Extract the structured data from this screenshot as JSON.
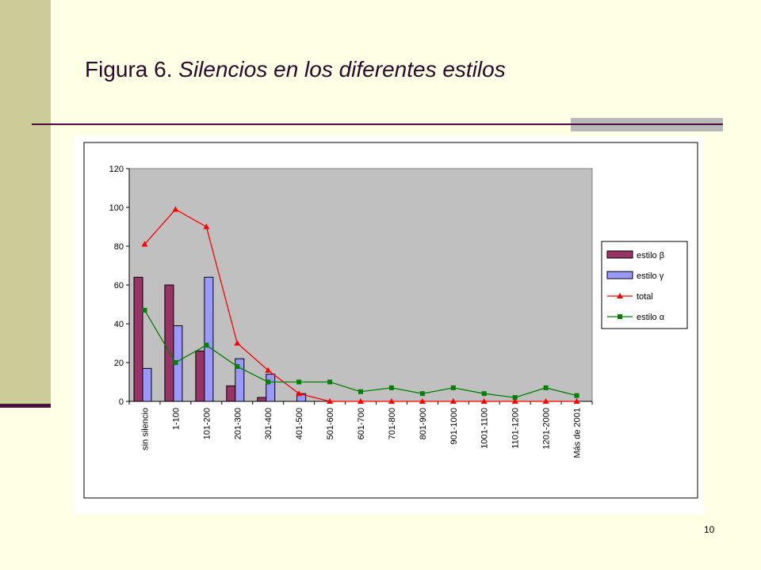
{
  "slide": {
    "title_prefix": "Figura 6. ",
    "title_italic": "Silencios en los diferentes estilos",
    "page_number": "10"
  },
  "colors": {
    "background": "#FFFFE5",
    "left_band": "#CCCC99",
    "accent_line": "#4B0F3C",
    "plot_area": "#C0C0C0",
    "estilo_beta": "#993366",
    "estilo_gamma": "#9999FF",
    "total": "#FF0000",
    "estilo_alpha": "#008000"
  },
  "chart_data": {
    "type": "bar",
    "categories": [
      "sin silencio",
      "1-100",
      "101-200",
      "201-300",
      "301-400",
      "401-500",
      "501-600",
      "601-700",
      "701-800",
      "801-900",
      "901-1000",
      "1001-1100",
      "1101-1200",
      "1201-2000",
      "Más de 2001"
    ],
    "ylim": [
      0,
      120
    ],
    "yticks": [
      "0",
      "20",
      "40",
      "60",
      "80",
      "100",
      "120"
    ],
    "grid": false,
    "legend_position": "right",
    "series": [
      {
        "name": "estilo β",
        "kind": "bar",
        "values": [
          64,
          60,
          26,
          8,
          2,
          0,
          0,
          0,
          0,
          0,
          0,
          0,
          0,
          0,
          0
        ]
      },
      {
        "name": "estilo γ",
        "kind": "bar",
        "values": [
          17,
          39,
          64,
          22,
          14,
          4,
          0,
          0,
          0,
          0,
          0,
          0,
          0,
          0,
          0
        ]
      },
      {
        "name": "total",
        "kind": "line",
        "marker": "triangle",
        "values": [
          81,
          99,
          90,
          30,
          16,
          4,
          0,
          0,
          0,
          0,
          0,
          0,
          0,
          0,
          0
        ]
      },
      {
        "name": "estilo α",
        "kind": "line",
        "marker": "square",
        "values": [
          47,
          20,
          29,
          18,
          10,
          10,
          10,
          5,
          7,
          4,
          7,
          4,
          2,
          7,
          3
        ]
      }
    ]
  }
}
